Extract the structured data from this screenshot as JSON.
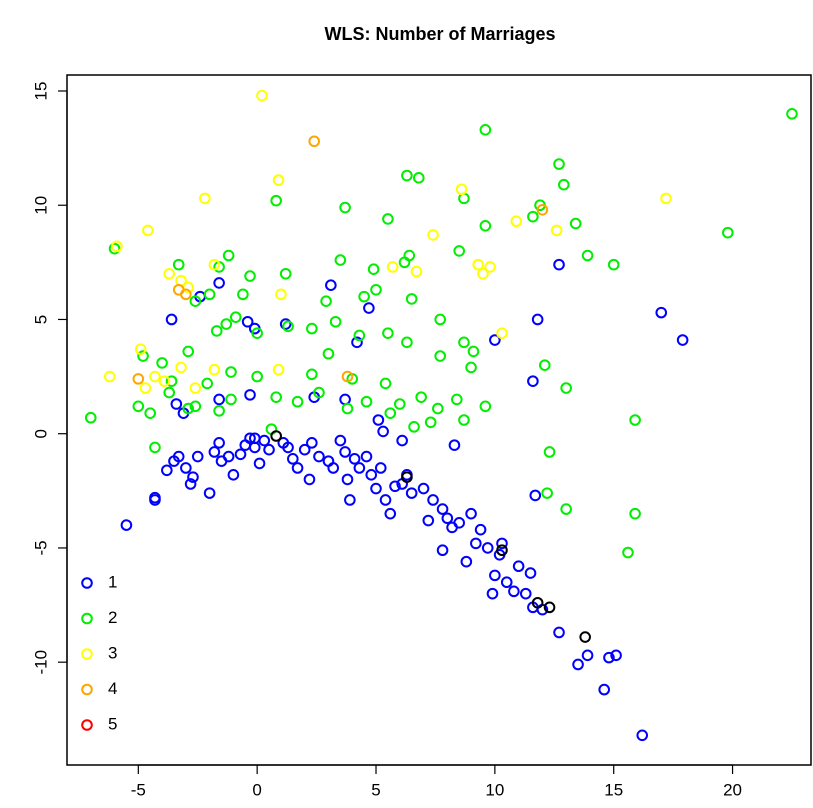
{
  "chart_data": {
    "type": "scatter",
    "title": "WLS: Number of Marriages",
    "xlim": [
      -8.0,
      23.3
    ],
    "ylim": [
      -14.5,
      15.7
    ],
    "xticks": [
      -5,
      0,
      5,
      10,
      15,
      20
    ],
    "yticks": [
      -10,
      -5,
      0,
      5,
      10,
      15
    ],
    "legend": "bottomleft",
    "series": [
      {
        "name": "1",
        "color": "#0000ff",
        "x": [
          -5.5,
          -4.3,
          -4.3,
          -3.8,
          -3.5,
          -3.3,
          -3.0,
          -2.8,
          -2.7,
          -2.5,
          -2.0,
          -1.8,
          -1.6,
          -1.5,
          -1.2,
          -1.0,
          -0.7,
          -0.5,
          -0.3,
          -0.1,
          0.1,
          0.3,
          0.5,
          1.1,
          1.3,
          1.5,
          1.7,
          2.0,
          2.2,
          2.3,
          2.6,
          3.0,
          3.2,
          3.5,
          3.7,
          3.8,
          3.9,
          4.1,
          4.3,
          4.6,
          4.8,
          5.0,
          5.2,
          5.4,
          5.6,
          5.8,
          6.1,
          6.3,
          6.5,
          7.0,
          7.2,
          7.4,
          7.8,
          7.8,
          8.0,
          8.2,
          8.5,
          8.8,
          9.0,
          9.2,
          9.4,
          9.7,
          9.9,
          10.0,
          10.2,
          10.3,
          10.5,
          10.8,
          11.0,
          11.3,
          11.5,
          11.6,
          12.0,
          12.7,
          13.5,
          13.9,
          14.6,
          14.8,
          15.1,
          16.2,
          -3.6,
          -2.4,
          -1.6,
          -0.4,
          -0.1,
          1.2,
          3.1,
          4.2,
          4.7,
          12.7,
          10.0,
          11.6,
          11.8,
          17.0,
          17.9,
          2.4,
          3.7,
          -3.1,
          -1.6,
          -0.3,
          5.1,
          5.3,
          6.1,
          8.3,
          11.7,
          -3.4,
          -0.1
        ],
        "values": [
          -4.0,
          -2.8,
          -2.9,
          -1.6,
          -1.2,
          -1.0,
          -1.5,
          -2.2,
          -1.9,
          -1.0,
          -2.6,
          -0.8,
          -0.4,
          -1.2,
          -1.0,
          -1.8,
          -0.9,
          -0.5,
          -0.2,
          -0.6,
          -1.3,
          -0.3,
          -0.7,
          -0.4,
          -0.6,
          -1.1,
          -1.5,
          -0.7,
          -2.0,
          -0.4,
          -1.0,
          -1.2,
          -1.5,
          -0.3,
          -0.8,
          -2.0,
          -2.9,
          -1.1,
          -1.5,
          -1.0,
          -1.8,
          -2.4,
          -1.5,
          -2.9,
          -3.5,
          -2.3,
          -2.2,
          -1.8,
          -2.6,
          -2.4,
          -3.8,
          -2.9,
          -5.1,
          -3.3,
          -3.7,
          -4.1,
          -3.9,
          -5.6,
          -3.5,
          -4.8,
          -4.2,
          -5.0,
          -7.0,
          -6.2,
          -5.3,
          -4.8,
          -6.5,
          -6.9,
          -5.8,
          -7.0,
          -6.1,
          -7.6,
          -7.7,
          -8.7,
          -10.1,
          -9.7,
          -11.2,
          -9.8,
          -9.7,
          -13.2,
          5.0,
          6.0,
          6.6,
          4.9,
          4.6,
          4.8,
          6.5,
          4.0,
          5.5,
          7.4,
          4.1,
          2.3,
          5.0,
          5.3,
          4.1,
          1.6,
          1.5,
          0.9,
          1.5,
          1.7,
          0.6,
          0.1,
          -0.3,
          -0.5,
          -2.7,
          1.3,
          -0.2
        ]
      },
      {
        "name": "2",
        "color": "#00ee00",
        "x": [
          22.5,
          9.6,
          12.7,
          6.3,
          6.8,
          12.9,
          8.7,
          5.5,
          11.9,
          3.7,
          9.6,
          0.8,
          11.6,
          13.4,
          19.8,
          -6.0,
          -3.3,
          -1.2,
          -1.6,
          1.2,
          3.5,
          4.9,
          6.2,
          6.4,
          8.5,
          13.9,
          15.0,
          -0.3,
          -2.6,
          -2.0,
          -0.6,
          2.9,
          4.5,
          5.0,
          6.5,
          -0.9,
          -1.7,
          -1.3,
          0.0,
          1.3,
          2.3,
          3.3,
          4.3,
          5.5,
          6.3,
          7.7,
          8.7,
          -2.9,
          -4.8,
          -4.0,
          -1.1,
          0.0,
          2.3,
          3.0,
          4.0,
          5.4,
          7.7,
          9.1,
          12.1,
          13.0,
          -7.0,
          -5.0,
          -4.5,
          -3.7,
          -2.9,
          -2.1,
          -1.1,
          0.8,
          1.7,
          2.6,
          3.8,
          4.6,
          5.6,
          6.0,
          6.9,
          7.3,
          8.4,
          8.7,
          9.6,
          6.6,
          7.6,
          12.2,
          12.3,
          13.0,
          15.6,
          15.9,
          15.9,
          -4.3,
          -3.6,
          -2.6,
          -1.6,
          0.6,
          9.0
        ],
        "values": [
          14.0,
          13.3,
          11.8,
          11.3,
          11.2,
          10.9,
          10.3,
          9.4,
          10.0,
          9.9,
          9.1,
          10.2,
          9.5,
          9.2,
          8.8,
          8.1,
          7.4,
          7.8,
          7.3,
          7.0,
          7.6,
          7.2,
          7.5,
          7.8,
          8.0,
          7.8,
          7.4,
          6.9,
          5.8,
          6.1,
          6.1,
          5.8,
          6.0,
          6.3,
          5.9,
          5.1,
          4.5,
          4.8,
          4.4,
          4.7,
          4.6,
          4.9,
          4.3,
          4.4,
          4.0,
          5.0,
          4.0,
          3.6,
          3.4,
          3.1,
          2.7,
          2.5,
          2.6,
          3.5,
          2.4,
          2.2,
          3.4,
          3.6,
          3.0,
          2.0,
          0.7,
          1.2,
          0.9,
          1.8,
          1.1,
          2.2,
          1.5,
          1.6,
          1.4,
          1.8,
          1.1,
          1.4,
          0.9,
          1.3,
          1.6,
          0.5,
          1.5,
          0.6,
          1.2,
          0.3,
          1.1,
          -2.6,
          -0.8,
          -3.3,
          -5.2,
          -3.5,
          0.6,
          -0.6,
          2.3,
          1.2,
          1.0,
          0.2,
          2.9
        ]
      },
      {
        "name": "3",
        "color": "#ffff00",
        "x": [
          0.2,
          0.9,
          -2.2,
          -4.6,
          -5.9,
          -3.7,
          -3.2,
          -2.9,
          -1.8,
          1.0,
          -6.2,
          -4.9,
          -4.7,
          -3.9,
          -3.2,
          -2.6,
          -1.8,
          0.9,
          5.7,
          6.7,
          7.4,
          8.6,
          9.3,
          9.5,
          9.8,
          10.3,
          10.9,
          12.6,
          17.2,
          -4.3
        ],
        "values": [
          14.8,
          11.1,
          10.3,
          8.9,
          8.2,
          7.0,
          6.7,
          6.4,
          7.4,
          6.1,
          2.5,
          3.7,
          2.0,
          2.3,
          2.9,
          2.0,
          2.8,
          2.8,
          7.3,
          7.1,
          8.7,
          10.7,
          7.4,
          7.0,
          7.3,
          4.4,
          9.3,
          8.9,
          10.3,
          2.5
        ]
      },
      {
        "name": "4",
        "color": "#ffa500",
        "x": [
          2.4,
          -3.3,
          3.8,
          -5.0,
          12.0,
          -3.0
        ],
        "values": [
          12.8,
          6.3,
          2.5,
          2.4,
          9.8,
          6.1
        ]
      },
      {
        "name": "5",
        "color": "#ff0000",
        "x": [],
        "values": []
      },
      {
        "color": "#000000",
        "x": [
          0.8,
          6.3,
          11.8,
          12.3,
          13.8,
          10.3
        ],
        "values": [
          -0.1,
          -1.9,
          -7.4,
          -7.6,
          -8.9,
          -5.1
        ]
      }
    ]
  }
}
